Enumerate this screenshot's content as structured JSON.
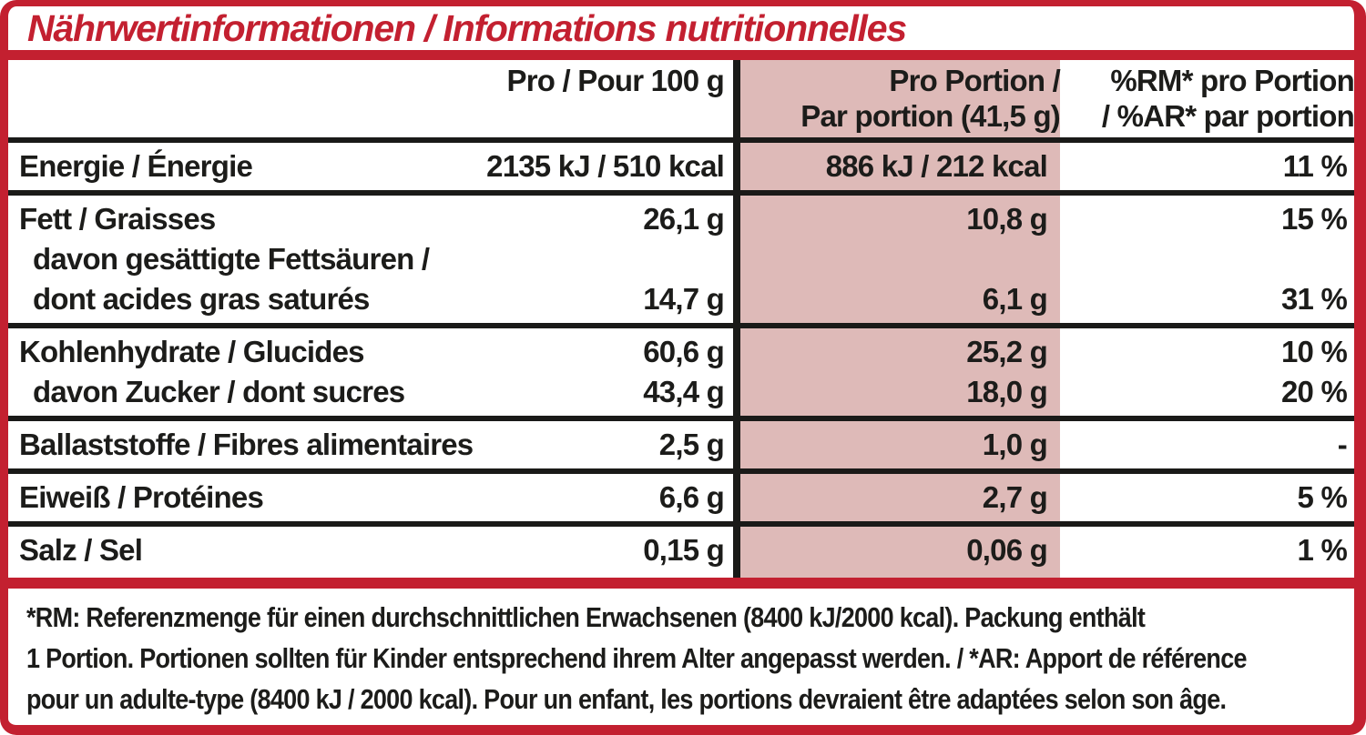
{
  "title": "Nährwertinformationen / Informations nutritionnelles",
  "colors": {
    "red": "#c32030",
    "pink": "#debab8",
    "ink": "#1c1c1a",
    "rule_black": "#1a1a18"
  },
  "header": {
    "per100": "Pro / Pour 100 g",
    "portion_l1": "Pro Portion /",
    "portion_l2": "Par portion (41,5 g)",
    "rm_l1": "%RM* pro Portion",
    "rm_l2": "/ %AR* par portion"
  },
  "rows": [
    {
      "name": "energie",
      "lines": [
        {
          "label": "Energie / Énergie",
          "per100": "2135 kJ / 510 kcal",
          "portion": "886 kJ / 212 kcal",
          "pct": "11 %"
        }
      ]
    },
    {
      "name": "fett",
      "lines": [
        {
          "label": "Fett / Graisses",
          "per100": "26,1 g",
          "portion": "10,8 g",
          "pct": "15 %"
        },
        {
          "label": "davon gesättigte Fettsäuren /"
        },
        {
          "label": "dont acides gras saturés",
          "per100": "14,7 g",
          "portion": "6,1 g",
          "pct": "31 %"
        }
      ]
    },
    {
      "name": "kohlenhydrate",
      "lines": [
        {
          "label": "Kohlenhydrate / Glucides",
          "per100": "60,6 g",
          "portion": "25,2 g",
          "pct": "10 %"
        },
        {
          "label": "davon Zucker / dont sucres",
          "per100": "43,4 g",
          "portion": "18,0 g",
          "pct": "20 %"
        }
      ]
    },
    {
      "name": "ballaststoffe",
      "lines": [
        {
          "label": "Ballaststoffe / Fibres alimentaires",
          "per100": "2,5 g",
          "portion": "1,0 g",
          "pct": "-"
        }
      ]
    },
    {
      "name": "eiweiss",
      "lines": [
        {
          "label": "Eiweiß / Protéines",
          "per100": "6,6 g",
          "portion": "2,7 g",
          "pct": "5 %"
        }
      ]
    },
    {
      "name": "salz",
      "lines": [
        {
          "label": "Salz / Sel",
          "per100": "0,15 g",
          "portion": "0,06 g",
          "pct": "1 %"
        }
      ]
    }
  ],
  "footnote": {
    "line1": "*RM: Referenzmenge für einen durchschnittlichen Erwachsenen (8400 kJ/2000 kcal). Packung enthält",
    "line2": "1 Portion. Portionen sollten für Kinder entsprechend ihrem Alter angepasst werden. / *AR: Apport de référence",
    "line3": "pour un adulte-type (8400 kJ / 2000 kcal). Pour un enfant, les portions devraient être adaptées selon son âge."
  }
}
